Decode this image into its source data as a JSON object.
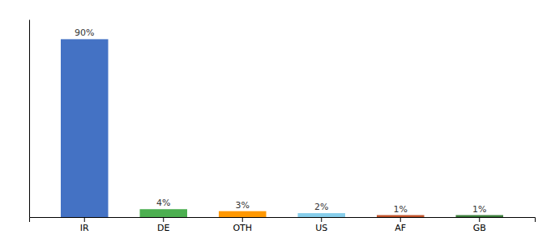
{
  "chart_data": {
    "type": "bar",
    "categories": [
      "IR",
      "DE",
      "OTH",
      "US",
      "AF",
      "GB"
    ],
    "values": [
      90,
      4,
      3,
      2,
      1,
      1
    ],
    "value_labels": [
      "90%",
      "4%",
      "3%",
      "2%",
      "1%",
      "1%"
    ],
    "colors": [
      "#4472C4",
      "#4CAF50",
      "#FF9800",
      "#87CEEB",
      "#C0522A",
      "#3A7D3A"
    ],
    "ylim": [
      0,
      100
    ],
    "data_labels": true,
    "tick_labels": "x",
    "grid": false
  }
}
